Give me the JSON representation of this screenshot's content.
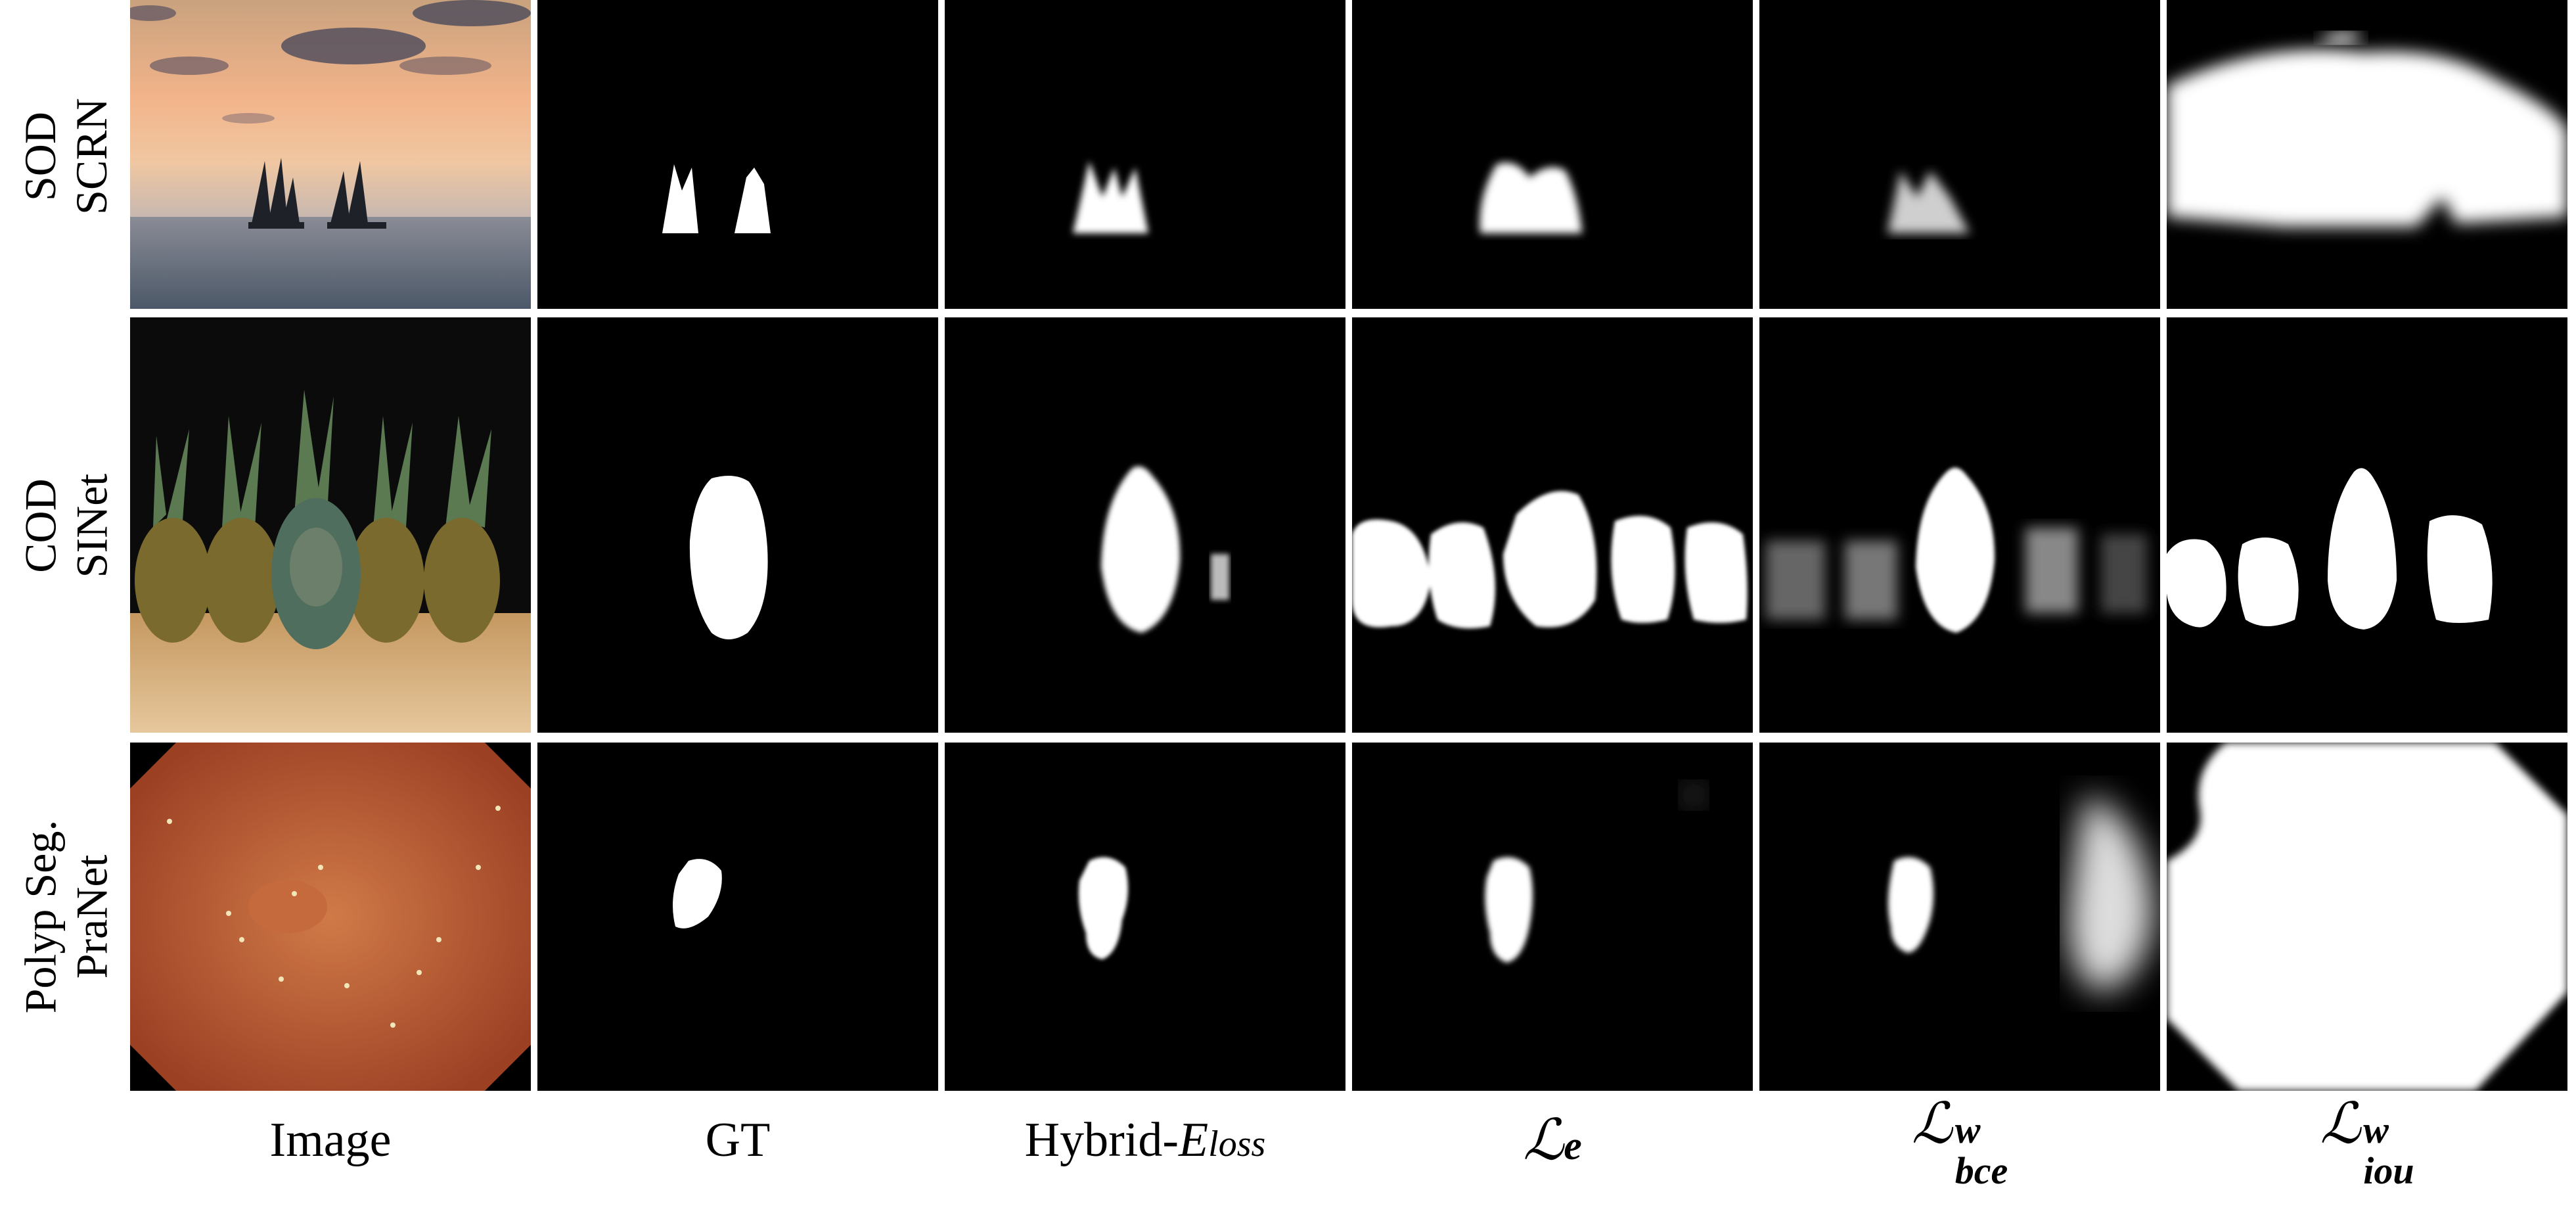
{
  "rows": [
    {
      "task": "SOD",
      "model": "SCRN"
    },
    {
      "task": "COD",
      "model": "SINet"
    },
    {
      "task": "Polyp Seg.",
      "model": "PraNet"
    }
  ],
  "columns": {
    "image": "Image",
    "gt": "GT",
    "hybrid_base": "Hybrid-",
    "hybrid_E": "E",
    "hybrid_sub": "loss",
    "le_script": "ℒ",
    "le_sub": "e",
    "lbce_script": "ℒ",
    "lbce_sup": "w",
    "lbce_sub": "bce",
    "liou_script": "ℒ",
    "liou_sup": "w",
    "liou_sub": "iou"
  },
  "colors": {
    "background": "#ffffff",
    "mask": "#000000"
  }
}
